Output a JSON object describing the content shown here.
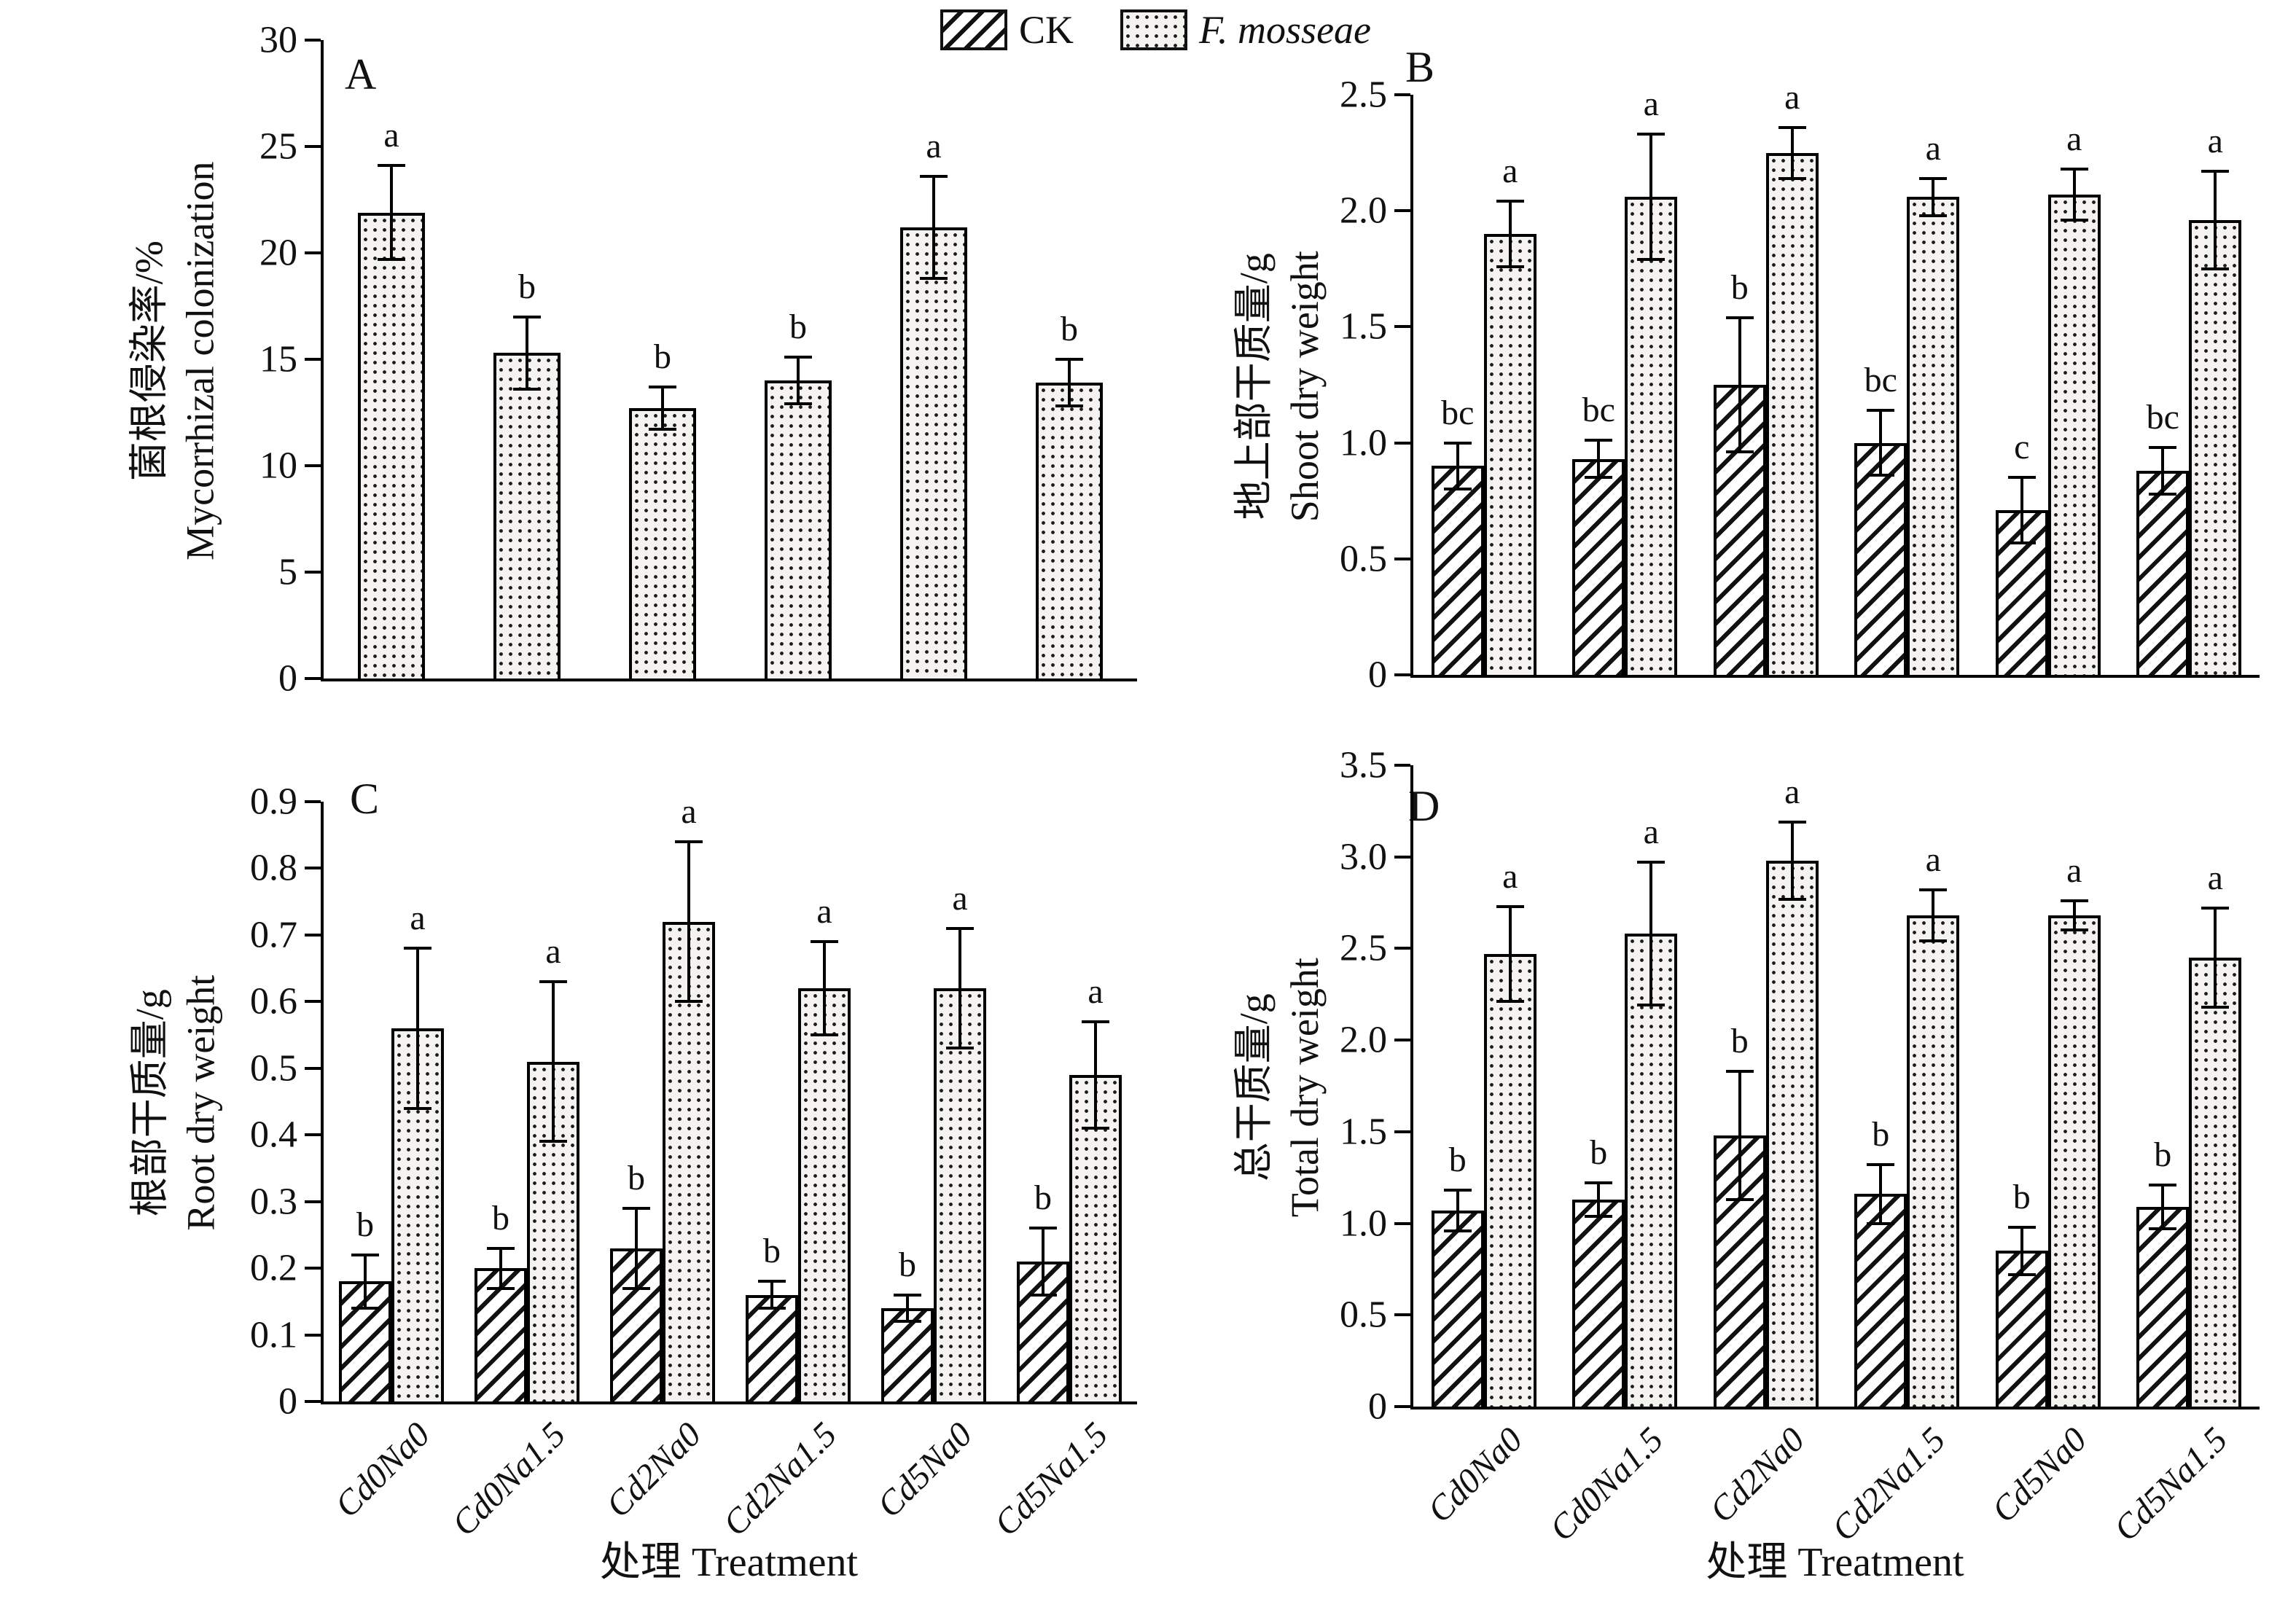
{
  "background_color": "#ffffff",
  "ink_color": "#111111",
  "legend": {
    "items": [
      {
        "label": "CK",
        "pattern": "diagonal-hatch"
      },
      {
        "label": "F. mosseae",
        "pattern": "dots"
      }
    ]
  },
  "xaxis_title": "处理 Treatment",
  "chart_data": [
    {
      "type": "bar",
      "panel_label": "A",
      "ylabel_cn": "菌根侵染率/%",
      "ylabel_en": "Mycorrhizal colonization",
      "ylim": [
        0,
        30
      ],
      "ytick_labels": [
        "0",
        "5",
        "10",
        "15",
        "20",
        "25",
        "30"
      ],
      "grid": false,
      "show_xlabels": false,
      "categories": [
        "Cd0Na0",
        "Cd0Na1.5",
        "Cd2Na0",
        "Cd2Na1.5",
        "Cd5Na0",
        "Cd5Na1.5"
      ],
      "series": [
        {
          "name": "F. mosseae",
          "pattern": "dots",
          "values": [
            21.9,
            15.3,
            12.7,
            14.0,
            21.2,
            13.9
          ],
          "errors": [
            2.2,
            1.7,
            1.0,
            1.1,
            2.4,
            1.1
          ],
          "letters": [
            "a",
            "b",
            "b",
            "b",
            "a",
            "b"
          ]
        }
      ]
    },
    {
      "type": "bar",
      "panel_label": "B",
      "ylabel_cn": "地上部干质量/g",
      "ylabel_en": "Shoot dry weight",
      "ylim": [
        0,
        2.5
      ],
      "ytick_labels": [
        "0",
        "0.5",
        "1.0",
        "1.5",
        "2.0",
        "2.5"
      ],
      "grid": false,
      "show_xlabels": false,
      "categories": [
        "Cd0Na0",
        "Cd0Na1.5",
        "Cd2Na0",
        "Cd2Na1.5",
        "Cd5Na0",
        "Cd5Na1.5"
      ],
      "series": [
        {
          "name": "CK",
          "pattern": "diagonal-hatch",
          "values": [
            0.9,
            0.93,
            1.25,
            1.0,
            0.71,
            0.88
          ],
          "errors": [
            0.1,
            0.08,
            0.29,
            0.14,
            0.14,
            0.1
          ],
          "letters": [
            "bc",
            "bc",
            "b",
            "bc",
            "c",
            "bc"
          ]
        },
        {
          "name": "F. mosseae",
          "pattern": "dots",
          "values": [
            1.9,
            2.06,
            2.25,
            2.06,
            2.07,
            1.96
          ],
          "errors": [
            0.14,
            0.27,
            0.11,
            0.08,
            0.11,
            0.21
          ],
          "letters": [
            "a",
            "a",
            "a",
            "a",
            "a",
            "a"
          ]
        }
      ]
    },
    {
      "type": "bar",
      "panel_label": "C",
      "ylabel_cn": "根部干质量/g",
      "ylabel_en": "Root dry weight",
      "ylim": [
        0,
        0.9
      ],
      "ytick_labels": [
        "0",
        "0.1",
        "0.2",
        "0.3",
        "0.4",
        "0.5",
        "0.6",
        "0.7",
        "0.8",
        "0.9"
      ],
      "grid": false,
      "show_xlabels": true,
      "categories": [
        "Cd0Na0",
        "Cd0Na1.5",
        "Cd2Na0",
        "Cd2Na1.5",
        "Cd5Na0",
        "Cd5Na1.5"
      ],
      "series": [
        {
          "name": "CK",
          "pattern": "diagonal-hatch",
          "values": [
            0.18,
            0.2,
            0.23,
            0.16,
            0.14,
            0.21
          ],
          "errors": [
            0.04,
            0.03,
            0.06,
            0.02,
            0.02,
            0.05
          ],
          "letters": [
            "b",
            "b",
            "b",
            "b",
            "b",
            "b"
          ]
        },
        {
          "name": "F. mosseae",
          "pattern": "dots",
          "values": [
            0.56,
            0.51,
            0.72,
            0.62,
            0.62,
            0.49
          ],
          "errors": [
            0.12,
            0.12,
            0.12,
            0.07,
            0.09,
            0.08
          ],
          "letters": [
            "a",
            "a",
            "a",
            "a",
            "a",
            "a"
          ]
        }
      ]
    },
    {
      "type": "bar",
      "panel_label": "D",
      "ylabel_cn": "总干质量/g",
      "ylabel_en": "Total dry weight",
      "ylim": [
        0,
        3.5
      ],
      "ytick_labels": [
        "0",
        "0.5",
        "1.0",
        "1.5",
        "2.0",
        "2.5",
        "3.0",
        "3.5"
      ],
      "grid": false,
      "show_xlabels": true,
      "categories": [
        "Cd0Na0",
        "Cd0Na1.5",
        "Cd2Na0",
        "Cd2Na1.5",
        "Cd5Na0",
        "Cd5Na1.5"
      ],
      "series": [
        {
          "name": "CK",
          "pattern": "diagonal-hatch",
          "values": [
            1.07,
            1.13,
            1.48,
            1.16,
            0.85,
            1.09
          ],
          "errors": [
            0.11,
            0.09,
            0.35,
            0.16,
            0.13,
            0.12
          ],
          "letters": [
            "b",
            "b",
            "b",
            "b",
            "b",
            "b"
          ]
        },
        {
          "name": "F. mosseae",
          "pattern": "dots",
          "values": [
            2.47,
            2.58,
            2.98,
            2.68,
            2.68,
            2.45
          ],
          "errors": [
            0.26,
            0.39,
            0.21,
            0.14,
            0.08,
            0.27
          ],
          "letters": [
            "a",
            "a",
            "a",
            "a",
            "a",
            "a"
          ]
        }
      ]
    }
  ]
}
